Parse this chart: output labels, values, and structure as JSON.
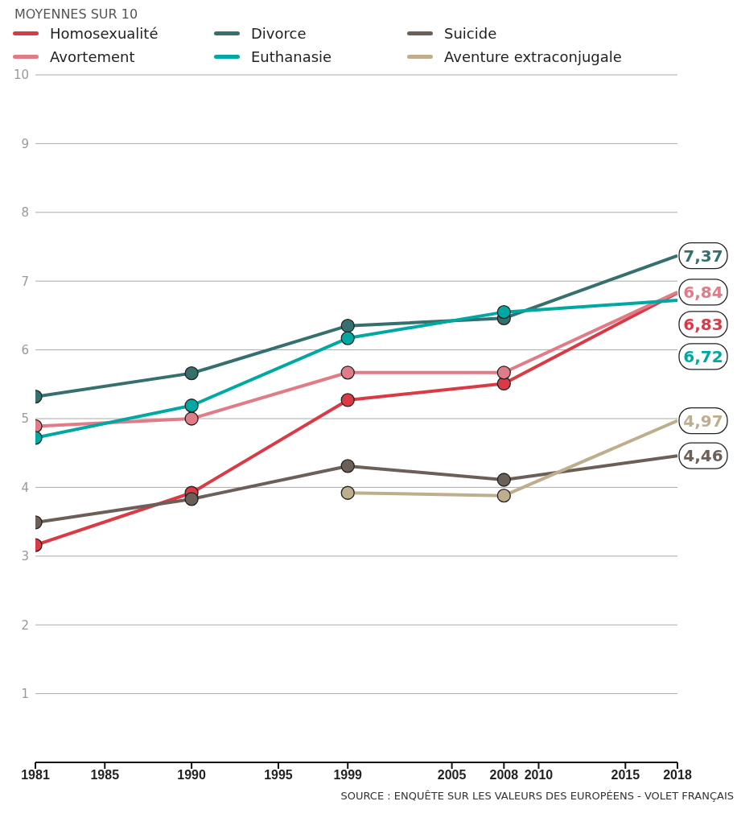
{
  "chart_data": {
    "type": "line",
    "ylabel": "MOYENNES SUR 10",
    "x": [
      1981,
      1990,
      1999,
      2008,
      2018
    ],
    "series": [
      {
        "name": "Homosexualité",
        "color": "#d93a45",
        "values": [
          3.16,
          3.92,
          5.27,
          5.51,
          6.83
        ],
        "value_labels": [
          null,
          null,
          null,
          null,
          "6,83"
        ]
      },
      {
        "name": "Avortement",
        "color": "#e07b88",
        "values": [
          4.89,
          5.0,
          5.67,
          5.67,
          6.84
        ],
        "value_labels": [
          null,
          null,
          null,
          null,
          "6,84"
        ]
      },
      {
        "name": "Divorce",
        "color": "#35706e",
        "values": [
          5.32,
          5.66,
          6.35,
          6.46,
          7.37
        ],
        "value_labels": [
          null,
          null,
          null,
          null,
          "7,37"
        ]
      },
      {
        "name": "Euthanasie",
        "color": "#00a8a3",
        "values": [
          4.72,
          5.19,
          6.17,
          6.55,
          6.72
        ],
        "value_labels": [
          null,
          null,
          null,
          null,
          "6,72"
        ]
      },
      {
        "name": "Suicide",
        "color": "#6b5f58",
        "values": [
          3.49,
          3.83,
          4.31,
          4.11,
          4.46
        ],
        "value_labels": [
          null,
          null,
          null,
          null,
          "4,46"
        ]
      },
      {
        "name": "Aventure extraconjugale",
        "color": "#bfae8e",
        "values": [
          null,
          null,
          3.92,
          3.88,
          4.97
        ],
        "value_labels": [
          null,
          null,
          null,
          null,
          "4,97"
        ]
      }
    ],
    "xlim": [
      1981,
      2018
    ],
    "xticks": [
      1981,
      1985,
      1990,
      1995,
      1999,
      2005,
      2008,
      2010,
      2015,
      2018
    ],
    "ylim": [
      0,
      10
    ],
    "yticks": [
      1,
      2,
      3,
      4,
      5,
      6,
      7,
      8,
      9,
      10
    ],
    "grid": "y",
    "legend": "top left",
    "marker": "circle",
    "line_style": "solid",
    "annotations": [
      "SOURCE : ENQUÊTE SUR LES VALEURS DES EUROPÉENS - VOLET FRANÇAIS"
    ]
  }
}
